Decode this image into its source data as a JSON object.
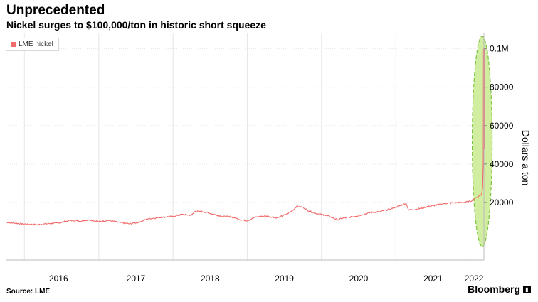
{
  "header": {
    "title": "Unprecedented",
    "subtitle": "Nickel surges to $100,000/ton in historic short squeeze"
  },
  "footer": {
    "source": "Source: LME",
    "brand": "Bloomberg"
  },
  "colors": {
    "line": "#f26b6b",
    "highlight_fill": "#c9ea8e",
    "highlight_stroke": "#7cc242",
    "grid": "#e6e6e6"
  },
  "chart_data": {
    "type": "line",
    "title": "Unprecedented",
    "subtitle": "Nickel surges to $100,000/ton in historic short squeeze",
    "ylabel": "Dollars a ton",
    "xlabel": "",
    "legend": {
      "entries": [
        "LME nickel"
      ],
      "placement": "top-left"
    },
    "grid": true,
    "x_range": [
      "2015-10-01",
      "2022-03-10"
    ],
    "ylim": [
      -10000,
      108000
    ],
    "y_ticks": [
      {
        "value": 20000,
        "label": "20000"
      },
      {
        "value": 40000,
        "label": "40000"
      },
      {
        "value": 60000,
        "label": "60000"
      },
      {
        "value": 80000,
        "label": "80000"
      },
      {
        "value": 100000,
        "label": "0.1M"
      }
    ],
    "x_ticks": [
      {
        "value": "2016-01-01",
        "label": "2016"
      },
      {
        "value": "2017-01-01",
        "label": "2017"
      },
      {
        "value": "2018-01-01",
        "label": "2018"
      },
      {
        "value": "2019-01-01",
        "label": "2019"
      },
      {
        "value": "2020-01-01",
        "label": "2020"
      },
      {
        "value": "2021-01-01",
        "label": "2021"
      },
      {
        "value": "2022-01-01",
        "label": "2022"
      }
    ],
    "series": [
      {
        "name": "LME nickel",
        "points": [
          [
            "2015-10-01",
            9800
          ],
          [
            "2015-11-15",
            9200
          ],
          [
            "2016-01-15",
            8700
          ],
          [
            "2016-03-01",
            8400
          ],
          [
            "2016-05-01",
            9000
          ],
          [
            "2016-06-15",
            9300
          ],
          [
            "2016-08-15",
            10700
          ],
          [
            "2016-10-01",
            10300
          ],
          [
            "2016-11-15",
            11000
          ],
          [
            "2017-01-01",
            10000
          ],
          [
            "2017-02-15",
            10700
          ],
          [
            "2017-04-01",
            9800
          ],
          [
            "2017-06-01",
            8900
          ],
          [
            "2017-07-15",
            9700
          ],
          [
            "2017-09-01",
            11500
          ],
          [
            "2017-10-15",
            12000
          ],
          [
            "2017-11-15",
            12400
          ],
          [
            "2018-01-01",
            12700
          ],
          [
            "2018-02-15",
            13800
          ],
          [
            "2018-04-01",
            13300
          ],
          [
            "2018-04-20",
            15400
          ],
          [
            "2018-06-01",
            15100
          ],
          [
            "2018-07-15",
            14000
          ],
          [
            "2018-09-01",
            12700
          ],
          [
            "2018-10-15",
            12500
          ],
          [
            "2018-12-01",
            11000
          ],
          [
            "2019-01-01",
            10500
          ],
          [
            "2019-02-15",
            12500
          ],
          [
            "2019-04-01",
            12900
          ],
          [
            "2019-06-01",
            12000
          ],
          [
            "2019-07-15",
            14000
          ],
          [
            "2019-08-15",
            16000
          ],
          [
            "2019-09-01",
            18000
          ],
          [
            "2019-10-01",
            17500
          ],
          [
            "2019-11-01",
            15500
          ],
          [
            "2019-12-15",
            14000
          ],
          [
            "2020-01-15",
            13500
          ],
          [
            "2020-02-15",
            12500
          ],
          [
            "2020-03-20",
            11000
          ],
          [
            "2020-04-15",
            11800
          ],
          [
            "2020-06-01",
            12500
          ],
          [
            "2020-07-15",
            13500
          ],
          [
            "2020-09-01",
            14800
          ],
          [
            "2020-10-15",
            15200
          ],
          [
            "2020-12-01",
            16500
          ],
          [
            "2021-01-01",
            17500
          ],
          [
            "2021-02-20",
            19500
          ],
          [
            "2021-03-05",
            16000
          ],
          [
            "2021-04-15",
            16500
          ],
          [
            "2021-06-01",
            17700
          ],
          [
            "2021-07-15",
            18500
          ],
          [
            "2021-09-01",
            19500
          ],
          [
            "2021-10-15",
            19800
          ],
          [
            "2021-12-01",
            20000
          ],
          [
            "2022-01-01",
            20500
          ],
          [
            "2022-02-01",
            22500
          ],
          [
            "2022-02-25",
            24000
          ],
          [
            "2022-03-03",
            27000
          ],
          [
            "2022-03-04",
            29000
          ],
          [
            "2022-03-07",
            42000
          ],
          [
            "2022-03-08",
            100000
          ],
          [
            "2022-03-09",
            48000
          ]
        ]
      }
    ],
    "annotations": [
      {
        "type": "ellipse-highlight",
        "around": "2022-03",
        "style": "green dashed"
      }
    ]
  }
}
